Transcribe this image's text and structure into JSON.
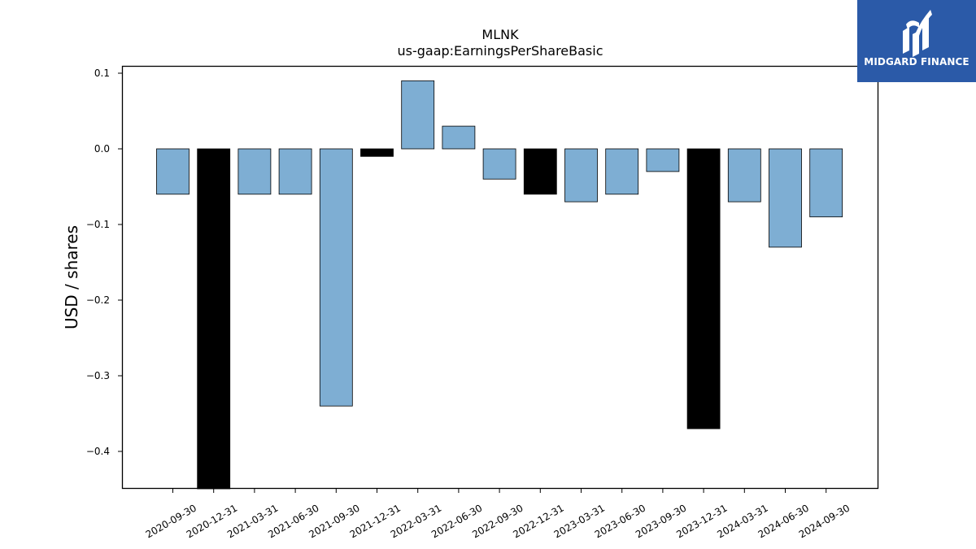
{
  "chart_data": {
    "type": "bar",
    "title": "MLNK",
    "subtitle": "us-gaap:EarningsPerShareBasic",
    "xlabel": "",
    "ylabel": "USD / shares",
    "ylim": [
      -0.45,
      0.11
    ],
    "yticks": [
      0.1,
      0.0,
      -0.1,
      -0.2,
      -0.3,
      -0.4
    ],
    "ytick_labels": [
      "0.1",
      "0.0",
      "−0.1",
      "−0.2",
      "−0.3",
      "−0.4"
    ],
    "grid": false,
    "categories": [
      "2020-09-30",
      "2020-12-31",
      "2021-03-31",
      "2021-06-30",
      "2021-09-30",
      "2021-12-31",
      "2022-03-31",
      "2022-06-30",
      "2022-09-30",
      "2022-12-31",
      "2023-03-31",
      "2023-06-30",
      "2023-09-30",
      "2023-12-31",
      "2024-03-31",
      "2024-06-30",
      "2024-09-30"
    ],
    "values": [
      -0.06,
      -0.45,
      -0.06,
      -0.06,
      -0.34,
      -0.01,
      0.09,
      0.03,
      -0.04,
      -0.06,
      -0.07,
      -0.06,
      -0.03,
      -0.37,
      -0.07,
      -0.13,
      -0.09
    ],
    "is_annual": [
      false,
      true,
      false,
      false,
      false,
      true,
      false,
      false,
      false,
      true,
      false,
      false,
      false,
      true,
      false,
      false,
      false
    ],
    "colors": {
      "quarter": "#7eaed3",
      "annual": "#000000",
      "edge": "#000000"
    }
  },
  "logo": {
    "text": "MIDGARD FINANCE",
    "background": "#2b5aa8"
  }
}
